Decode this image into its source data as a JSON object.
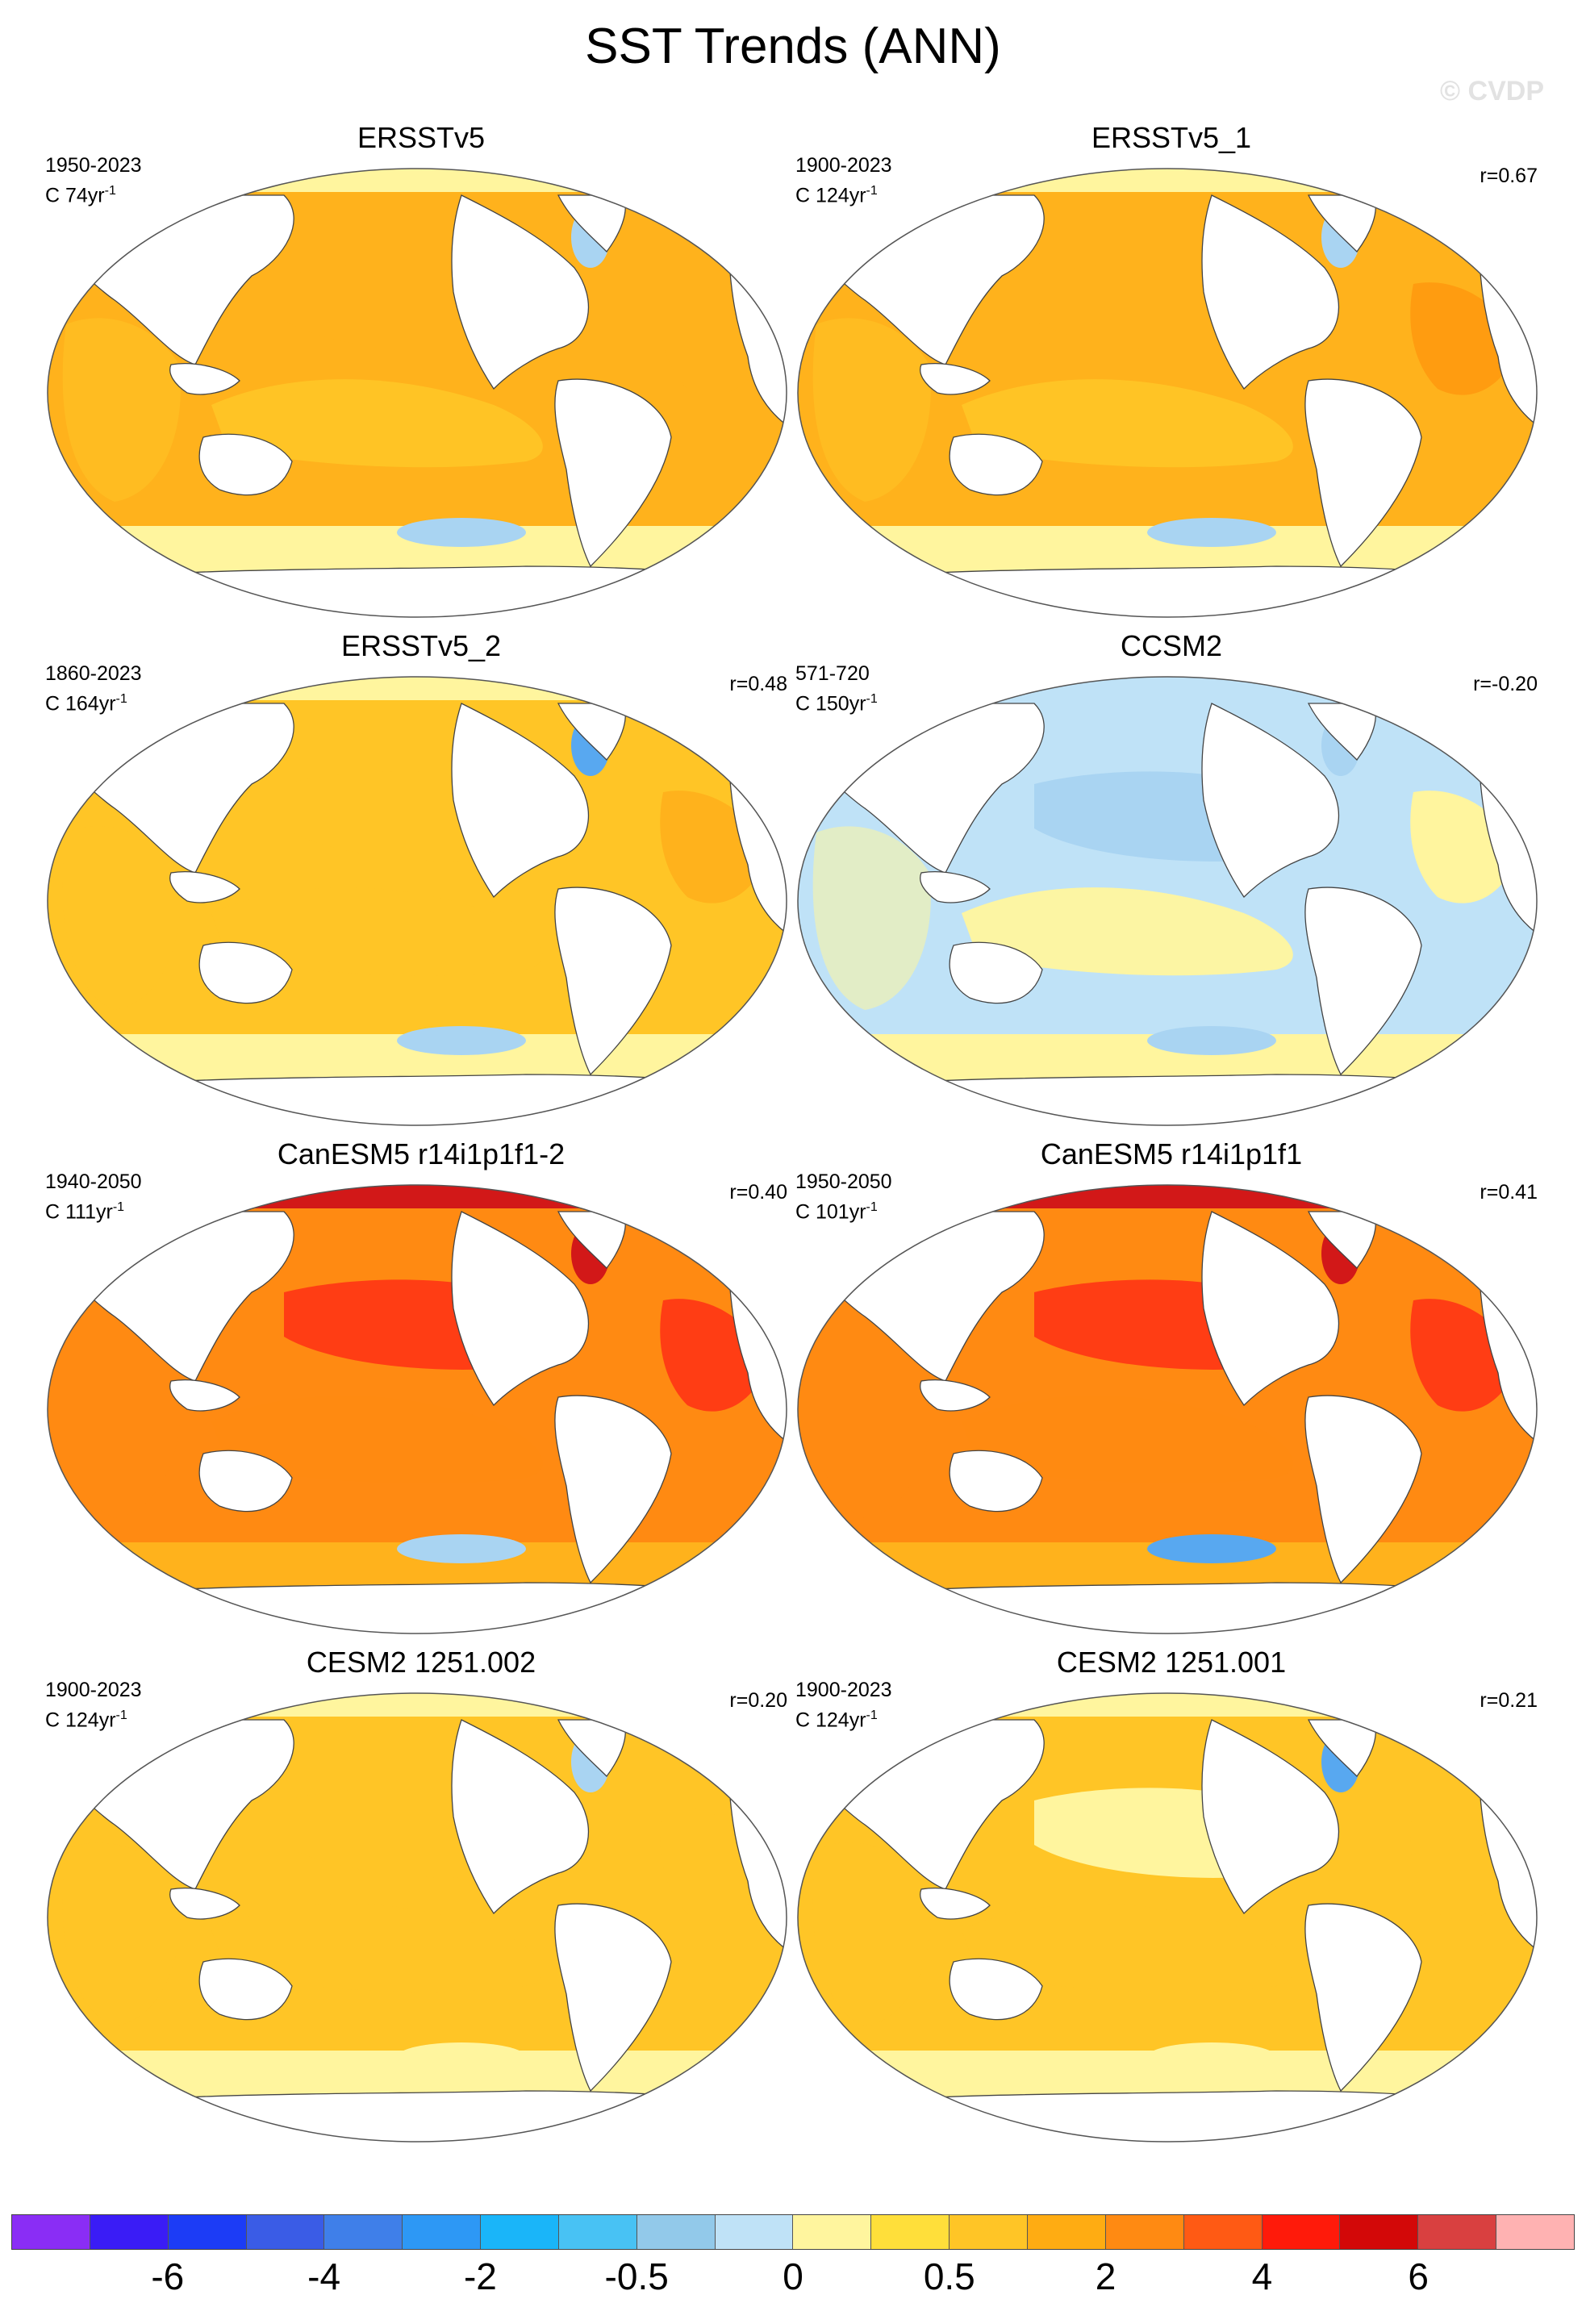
{
  "title": "SST Trends (ANN)",
  "watermark": "© CVDP",
  "panels": [
    {
      "title": "ERSSTv5",
      "period": "1950-2023",
      "units_prefix": "C 74yr",
      "units_exp": "-1",
      "corr": "",
      "fields": {
        "base": "orange-mid",
        "north_pacific": "orange-mid",
        "tropics": "orange-light",
        "north_atlantic": "orange-mid",
        "labrador_sea": "blue-light",
        "southern_ocean": "yellow",
        "southern_patch": "blue-light",
        "arctic": "yellow"
      }
    },
    {
      "title": "ERSSTv5_1",
      "period": "1900-2023",
      "units_prefix": "C 124yr",
      "units_exp": "-1",
      "corr": "r=0.67",
      "fields": {
        "base": "orange-mid",
        "north_pacific": "orange-mid",
        "tropics": "orange-light",
        "north_atlantic": "orange",
        "labrador_sea": "blue-light",
        "southern_ocean": "yellow",
        "southern_patch": "blue-light",
        "arctic": "yellow"
      }
    },
    {
      "title": "ERSSTv5_2",
      "period": "1860-2023",
      "units_prefix": "C 164yr",
      "units_exp": "-1",
      "corr": "r=0.48",
      "fields": {
        "base": "orange-light",
        "north_pacific": "orange-light",
        "tropics": "orange-light",
        "north_atlantic": "orange-mid",
        "labrador_sea": "blue-mid",
        "southern_ocean": "yellow",
        "southern_patch": "blue-light",
        "arctic": "yellow"
      }
    },
    {
      "title": "CCSM2",
      "period": "571-720",
      "units_prefix": "C 150yr",
      "units_exp": "-1",
      "corr": "r=-0.20",
      "fields": {
        "base": "blue-pale",
        "north_pacific": "blue-light",
        "tropics": "yellow",
        "north_atlantic": "yellow",
        "labrador_sea": "blue-light",
        "southern_ocean": "yellow",
        "southern_patch": "blue-light",
        "arctic": "blue-pale"
      }
    },
    {
      "title": "CanESM5 r14i1p1f1-2",
      "period": "1940-2050",
      "units_prefix": "C 111yr",
      "units_exp": "-1",
      "corr": "r=0.40",
      "fields": {
        "base": "orange-dark",
        "north_pacific": "red",
        "tropics": "orange-dark",
        "north_atlantic": "red",
        "labrador_sea": "red-dark",
        "southern_ocean": "orange-mid",
        "southern_patch": "blue-light",
        "arctic": "red-dark"
      }
    },
    {
      "title": "CanESM5 r14i1p1f1",
      "period": "1950-2050",
      "units_prefix": "C 101yr",
      "units_exp": "-1",
      "corr": "r=0.41",
      "fields": {
        "base": "orange-dark",
        "north_pacific": "red",
        "tropics": "orange-dark",
        "north_atlantic": "red",
        "labrador_sea": "red-dark",
        "southern_ocean": "orange-mid",
        "southern_patch": "blue-mid",
        "arctic": "red-dark"
      }
    },
    {
      "title": "CESM2 1251.002",
      "period": "1900-2023",
      "units_prefix": "C 124yr",
      "units_exp": "-1",
      "corr": "r=0.20",
      "fields": {
        "base": "orange-light",
        "north_pacific": "orange-light",
        "tropics": "orange-light",
        "north_atlantic": "orange-light",
        "labrador_sea": "blue-light",
        "southern_ocean": "yellow",
        "southern_patch": "yellow",
        "arctic": "yellow"
      }
    },
    {
      "title": "CESM2 1251.001",
      "period": "1900-2023",
      "units_prefix": "C 124yr",
      "units_exp": "-1",
      "corr": "r=0.21",
      "fields": {
        "base": "orange-light",
        "north_pacific": "yellow",
        "tropics": "orange-light",
        "north_atlantic": "orange-light",
        "labrador_sea": "blue-mid",
        "southern_ocean": "yellow",
        "southern_patch": "yellow",
        "arctic": "yellow"
      }
    }
  ],
  "palette": {
    "blue-mid": "#58a8f0",
    "blue-light": "#a9d4f2",
    "blue-pale": "#bfe2f7",
    "yellow": "#fff59e",
    "orange-light": "#ffc526",
    "orange-mid": "#ffb21c",
    "orange": "#ff9c10",
    "orange-dark": "#ff8a12",
    "red": "#ff3d14",
    "red-dark": "#d21818"
  },
  "colorbar": {
    "colors": [
      "#8a2df5",
      "#3a1cf6",
      "#1c3cf6",
      "#3a5ce6",
      "#3f7fe9",
      "#2d98f5",
      "#1ab5f9",
      "#48c2f4",
      "#92c9ea",
      "#bfe2f7",
      "#fff59e",
      "#ffdf3a",
      "#ffc526",
      "#ffac12",
      "#ff8a12",
      "#ff5a14",
      "#ff1a0a",
      "#d30808",
      "#d94040",
      "#ffb2b2"
    ],
    "labels": [
      "-6",
      "-4",
      "-2",
      "-0.5",
      "0",
      "0.5",
      "2",
      "4",
      "6"
    ]
  }
}
